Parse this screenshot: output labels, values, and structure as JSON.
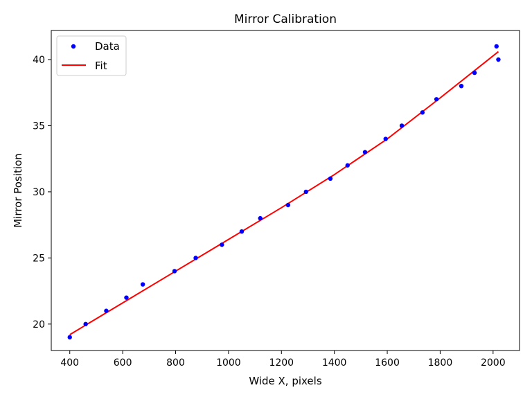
{
  "chart_data": {
    "type": "scatter",
    "title": "Mirror Calibration",
    "xlabel": "Wide X, pixels",
    "ylabel": "Mirror Position",
    "xlim": [
      330,
      2100
    ],
    "ylim": [
      18.0,
      42.2
    ],
    "xticks": [
      400,
      600,
      800,
      1000,
      1200,
      1400,
      1600,
      1800,
      2000
    ],
    "yticks": [
      20,
      25,
      30,
      35,
      40
    ],
    "grid": false,
    "legend_position": "top-left",
    "series": [
      {
        "name": "Data",
        "kind": "markers",
        "color": "#0000ff",
        "points": [
          [
            400,
            19
          ],
          [
            460,
            20
          ],
          [
            538,
            21
          ],
          [
            614,
            22
          ],
          [
            676,
            23
          ],
          [
            796,
            24
          ],
          [
            876,
            25
          ],
          [
            975,
            26
          ],
          [
            1050,
            27
          ],
          [
            1120,
            28
          ],
          [
            1225,
            29
          ],
          [
            1293,
            30
          ],
          [
            1385,
            31
          ],
          [
            1450,
            32
          ],
          [
            1516,
            33
          ],
          [
            1594,
            34
          ],
          [
            1655,
            35
          ],
          [
            1733,
            36
          ],
          [
            1786,
            37
          ],
          [
            1880,
            38
          ],
          [
            1930,
            39
          ],
          [
            2013,
            41
          ],
          [
            2020,
            40
          ]
        ]
      },
      {
        "name": "Fit",
        "kind": "line",
        "color": "#ff0000",
        "points": [
          [
            400,
            19.2
          ],
          [
            600,
            21.6
          ],
          [
            800,
            24.0
          ],
          [
            1000,
            26.4
          ],
          [
            1200,
            28.8
          ],
          [
            1400,
            31.3
          ],
          [
            1600,
            34.0
          ],
          [
            1800,
            37.1
          ],
          [
            2020,
            40.6
          ]
        ]
      }
    ]
  }
}
